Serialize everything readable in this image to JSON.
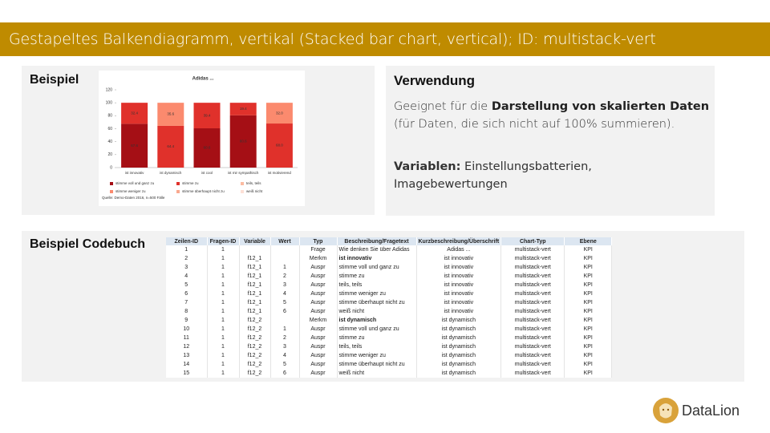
{
  "header": {
    "title": "Gestapeltes Balkendiagramm, vertikal (Stacked bar chart, vertical); ID: multistack-vert"
  },
  "example": {
    "title": "Beispiel"
  },
  "chart_data": {
    "type": "bar",
    "stacked": true,
    "title": "Adidas ...",
    "categories": [
      "ist innovativ",
      "ist dynamisch",
      "ist cool",
      "ist mir sympathisch",
      "ist motivierend"
    ],
    "series": [
      {
        "name": "stimme voll und ganz zu",
        "color": "#a50f15",
        "values": [
          67.6,
          null,
          60.6,
          80.6,
          null
        ],
        "value_labels": [
          "67.6",
          null,
          "60.6",
          "80.6",
          null
        ]
      },
      {
        "name": "stimme zu",
        "color": "#e0312b",
        "values": [
          32.4,
          64.4,
          39.4,
          19.4,
          68
        ],
        "value_labels": [
          "32.4",
          "64.4",
          "39.4",
          "19.4",
          "68.0"
        ]
      },
      {
        "name": "teils, teils",
        "color": "#fcbba1",
        "values": [
          null,
          null,
          null,
          null,
          null
        ]
      },
      {
        "name": "stimme weniger zu",
        "color": "#fb8a6e",
        "values": [
          null,
          35.6,
          null,
          null,
          32
        ],
        "value_labels": [
          null,
          "35.6",
          null,
          null,
          "32.0"
        ]
      },
      {
        "name": "stimme überhaupt nicht zu",
        "color": "#f9a98f",
        "values": [
          null,
          null,
          null,
          null,
          null
        ]
      },
      {
        "name": "weiß nicht",
        "color": "#fde0d6",
        "values": [
          null,
          null,
          null,
          null,
          null
        ]
      }
    ],
    "ylim": [
      0,
      120
    ],
    "yticks": [
      0,
      20,
      40,
      60,
      80,
      100,
      120
    ],
    "grid": false,
    "source": "Quelle: Demo-Daten 2016, n=500 Fälle"
  },
  "usage": {
    "title": "Verwendung",
    "description": {
      "plain": "Geeignet für die",
      "bold": "Darstellung von skalierten Daten",
      "note": "(für Daten, die sich nicht auf 100% summieren)."
    },
    "variables": {
      "label": "Variablen:",
      "text": "Einstellungsbatterien, Imagebewertungen"
    }
  },
  "codebook": {
    "title": "Beispiel Codebuch",
    "table": {
      "columns": [
        "Zeilen-ID",
        "Fragen-ID",
        "Variable",
        "Wert",
        "Typ",
        "Beschreibung/Fragetext",
        "Kurzbeschreibung/Überschrift",
        "Chart-Typ",
        "Ebene"
      ],
      "rows": [
        [
          1,
          1,
          null,
          null,
          "Frage",
          "Wie denken Sie über Adidas",
          "Adidas ...",
          "multistack-vert",
          "KPI"
        ],
        [
          2,
          1,
          "f12_1",
          null,
          "Merkm",
          "ist innovativ",
          "ist innovativ",
          "multistack-vert",
          "KPI"
        ],
        [
          3,
          1,
          "f12_1",
          1,
          "Auspr",
          "stimme voll und ganz zu",
          "ist innovativ",
          "multistack-vert",
          "KPI"
        ],
        [
          4,
          1,
          "f12_1",
          2,
          "Auspr",
          "stimme zu",
          "ist innovativ",
          "multistack-vert",
          "KPI"
        ],
        [
          5,
          1,
          "f12_1",
          3,
          "Auspr",
          "teils, teils",
          "ist innovativ",
          "multistack-vert",
          "KPI"
        ],
        [
          6,
          1,
          "f12_1",
          4,
          "Auspr",
          "stimme weniger zu",
          "ist innovativ",
          "multistack-vert",
          "KPI"
        ],
        [
          7,
          1,
          "f12_1",
          5,
          "Auspr",
          "stimme überhaupt nicht zu",
          "ist innovativ",
          "multistack-vert",
          "KPI"
        ],
        [
          8,
          1,
          "f12_1",
          6,
          "Auspr",
          "weiß nicht",
          "ist innovativ",
          "multistack-vert",
          "KPI"
        ],
        [
          9,
          1,
          "f12_2",
          null,
          "Merkm",
          "ist dynamisch",
          "ist dynamisch",
          "multistack-vert",
          "KPI"
        ],
        [
          10,
          1,
          "f12_2",
          1,
          "Auspr",
          "stimme voll und ganz zu",
          "ist dynamisch",
          "multistack-vert",
          "KPI"
        ],
        [
          11,
          1,
          "f12_2",
          2,
          "Auspr",
          "stimme zu",
          "ist dynamisch",
          "multistack-vert",
          "KPI"
        ],
        [
          12,
          1,
          "f12_2",
          3,
          "Auspr",
          "teils, teils",
          "ist dynamisch",
          "multistack-vert",
          "KPI"
        ],
        [
          13,
          1,
          "f12_2",
          4,
          "Auspr",
          "stimme weniger zu",
          "ist dynamisch",
          "multistack-vert",
          "KPI"
        ],
        [
          14,
          1,
          "f12_2",
          5,
          "Auspr",
          "stimme überhaupt nicht zu",
          "ist dynamisch",
          "multistack-vert",
          "KPI"
        ],
        [
          15,
          1,
          "f12_2",
          6,
          "Auspr",
          "weiß nicht",
          "ist dynamisch",
          "multistack-vert",
          "KPI"
        ]
      ]
    }
  },
  "logo": {
    "text": "DataLion"
  }
}
